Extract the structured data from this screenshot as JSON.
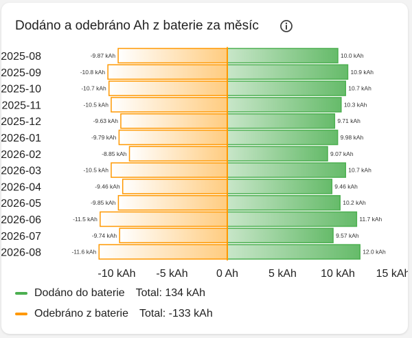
{
  "card": {
    "title": "Dodáno a odebráno Ah z baterie za měsíc",
    "info_icon": "info-circle-icon"
  },
  "colors": {
    "delivered": "#4caf50",
    "delivered_fill_start": "#c8e6c9",
    "delivered_fill_end": "#66bb6a",
    "withdrawn": "#ff9800",
    "withdrawn_fill_start": "#ffffff",
    "withdrawn_fill_end": "#ffcc80"
  },
  "legend": [
    {
      "name": "Dodáno do baterie",
      "total": "Total: 134 kAh",
      "color": "#4caf50"
    },
    {
      "name": "Odebráno z baterie",
      "total": "Total: -133 kAh",
      "color": "#ff9800"
    }
  ],
  "chart_data": {
    "type": "bar",
    "orientation": "horizontal",
    "categories": [
      "2025-08",
      "2025-09",
      "2025-10",
      "2025-11",
      "2025-12",
      "2026-01",
      "2026-02",
      "2026-03",
      "2026-04",
      "2026-05",
      "2026-06",
      "2026-07",
      "2026-08"
    ],
    "series": [
      {
        "name": "Dodáno do baterie",
        "values": [
          10.0,
          10.9,
          10.7,
          10.3,
          9.71,
          9.98,
          9.07,
          10.7,
          9.46,
          10.2,
          11.7,
          9.57,
          12.0
        ],
        "labels": [
          "10.0 kAh",
          "10.9 kAh",
          "10.7 kAh",
          "10.3 kAh",
          "9.71 kAh",
          "9.98 kAh",
          "9.07 kAh",
          "10.7 kAh",
          "9.46 kAh",
          "10.2 kAh",
          "11.7 kAh",
          "9.57 kAh",
          "12.0 kAh"
        ]
      },
      {
        "name": "Odebráno z baterie",
        "values": [
          -9.87,
          -10.8,
          -10.7,
          -10.5,
          -9.63,
          -9.79,
          -8.85,
          -10.5,
          -9.46,
          -9.85,
          -11.5,
          -9.74,
          -11.6
        ],
        "labels": [
          "-9.87 kAh",
          "-10.8 kAh",
          "-10.7 kAh",
          "-10.5 kAh",
          "-9.63 kAh",
          "-9.79 kAh",
          "-8.85 kAh",
          "-10.5 kAh",
          "-9.46 kAh",
          "-9.85 kAh",
          "-11.5 kAh",
          "-9.74 kAh",
          "-11.6 kAh"
        ]
      }
    ],
    "xlim": [
      -15,
      15
    ],
    "x_ticks": [
      -10,
      -5,
      0,
      5,
      10,
      15
    ],
    "x_tick_labels": [
      "-10 kAh",
      "-5 kAh",
      "0 Ah",
      "5 kAh",
      "10 kAh",
      "15 kAh"
    ],
    "grid": false,
    "legend_position": "bottom-left"
  }
}
